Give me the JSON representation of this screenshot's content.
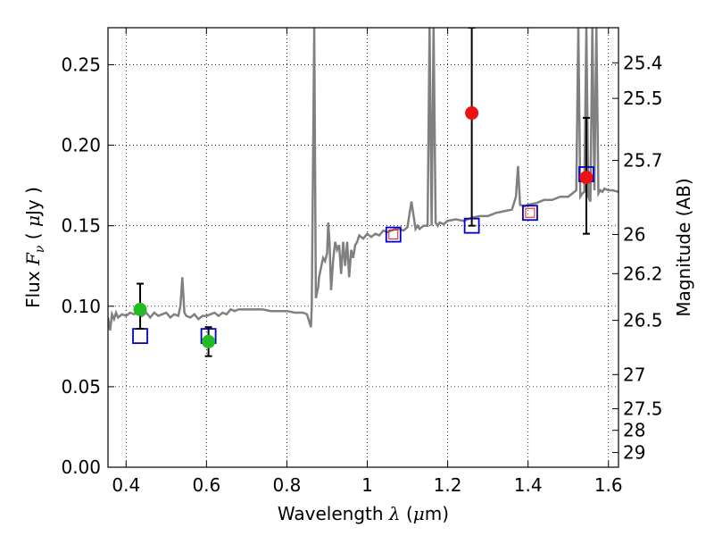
{
  "chart_data": {
    "type": "scatter",
    "xlabel_text": "Wavelength",
    "xlabel_symbol": "λ",
    "xlabel_unit_open": " (",
    "xlabel_unit_mu": "μ",
    "xlabel_unit_rest": "m)",
    "ylabel_text": "Flux",
    "ylabel_symbol": "F",
    "ylabel_sub": "ν",
    "ylabel_unit_open": "  ( ",
    "ylabel_unit_mu": "μ",
    "ylabel_unit_rest": "Jy )",
    "y2label": "Magnitude (AB)",
    "xlim": [
      0.355,
      1.625
    ],
    "ylim": [
      0.0,
      0.273
    ],
    "grid": true,
    "x_ticks": [
      0.4,
      0.6,
      0.8,
      1.0,
      1.2,
      1.4,
      1.6
    ],
    "x_tick_labels": [
      "0.4",
      "0.6",
      "0.8",
      "1",
      "1.2",
      "1.4",
      "1.6"
    ],
    "y_ticks": [
      0.0,
      0.05,
      0.1,
      0.15,
      0.2,
      0.25
    ],
    "y_tick_labels": [
      "0.00",
      "0.05",
      "0.10",
      "0.15",
      "0.20",
      "0.25"
    ],
    "mag_ticks": [
      25.4,
      25.5,
      25.7,
      26,
      26.2,
      26.5,
      27,
      27.5,
      28,
      29
    ],
    "mag_tick_labels": [
      "25.4",
      "25.5",
      "25.7",
      "26",
      "26.2",
      "26.5",
      "27",
      "27.5",
      "28",
      "29"
    ],
    "model_spectrum": {
      "color": "#808080",
      "x": [
        0.355,
        0.36,
        0.365,
        0.37,
        0.375,
        0.38,
        0.39,
        0.4,
        0.41,
        0.42,
        0.43,
        0.44,
        0.45,
        0.46,
        0.47,
        0.48,
        0.49,
        0.5,
        0.51,
        0.52,
        0.53,
        0.535,
        0.54,
        0.545,
        0.55,
        0.56,
        0.57,
        0.58,
        0.59,
        0.6,
        0.61,
        0.62,
        0.63,
        0.64,
        0.65,
        0.66,
        0.67,
        0.68,
        0.7,
        0.72,
        0.74,
        0.76,
        0.78,
        0.8,
        0.82,
        0.84,
        0.85,
        0.86,
        0.862,
        0.868,
        0.872,
        0.878,
        0.88,
        0.885,
        0.89,
        0.895,
        0.9,
        0.903,
        0.906,
        0.91,
        0.915,
        0.92,
        0.925,
        0.93,
        0.935,
        0.94,
        0.945,
        0.95,
        0.955,
        0.96,
        0.965,
        0.97,
        0.975,
        0.98,
        0.99,
        1.0,
        1.01,
        1.02,
        1.03,
        1.04,
        1.05,
        1.06,
        1.07,
        1.08,
        1.09,
        1.1,
        1.11,
        1.12,
        1.125,
        1.13,
        1.135,
        1.14,
        1.15,
        1.155,
        1.16,
        1.165,
        1.17,
        1.175,
        1.18,
        1.19,
        1.2,
        1.22,
        1.24,
        1.26,
        1.28,
        1.3,
        1.32,
        1.34,
        1.36,
        1.37,
        1.375,
        1.38,
        1.39,
        1.4,
        1.42,
        1.44,
        1.46,
        1.48,
        1.5,
        1.51,
        1.52,
        1.525,
        1.53,
        1.535,
        1.54,
        1.545,
        1.55,
        1.555,
        1.56,
        1.565,
        1.57,
        1.575,
        1.58,
        1.585,
        1.59,
        1.6,
        1.61,
        1.625
      ],
      "y": [
        0.093,
        0.085,
        0.095,
        0.092,
        0.096,
        0.093,
        0.095,
        0.094,
        0.096,
        0.095,
        0.098,
        0.094,
        0.096,
        0.093,
        0.096,
        0.094,
        0.095,
        0.096,
        0.093,
        0.095,
        0.094,
        0.1,
        0.118,
        0.096,
        0.094,
        0.093,
        0.095,
        0.092,
        0.094,
        0.094,
        0.095,
        0.096,
        0.094,
        0.096,
        0.095,
        0.098,
        0.097,
        0.098,
        0.098,
        0.098,
        0.098,
        0.097,
        0.097,
        0.097,
        0.096,
        0.096,
        0.095,
        0.087,
        0.1,
        0.273,
        0.105,
        0.112,
        0.118,
        0.124,
        0.13,
        0.128,
        0.133,
        0.152,
        0.14,
        0.11,
        0.128,
        0.14,
        0.135,
        0.138,
        0.12,
        0.14,
        0.125,
        0.14,
        0.118,
        0.135,
        0.13,
        0.138,
        0.14,
        0.144,
        0.142,
        0.145,
        0.143,
        0.145,
        0.144,
        0.147,
        0.146,
        0.147,
        0.148,
        0.148,
        0.147,
        0.149,
        0.165,
        0.148,
        0.15,
        0.148,
        0.149,
        0.15,
        0.15,
        0.273,
        0.15,
        0.273,
        0.152,
        0.15,
        0.152,
        0.151,
        0.153,
        0.154,
        0.153,
        0.155,
        0.156,
        0.156,
        0.158,
        0.159,
        0.16,
        0.168,
        0.187,
        0.163,
        0.162,
        0.163,
        0.164,
        0.166,
        0.166,
        0.168,
        0.168,
        0.17,
        0.172,
        0.273,
        0.168,
        0.17,
        0.171,
        0.273,
        0.168,
        0.165,
        0.273,
        0.172,
        0.273,
        0.17,
        0.172,
        0.171,
        0.173,
        0.172,
        0.172,
        0.171
      ]
    },
    "model_points": {
      "color": "#0000cc",
      "marker": "open-square",
      "x": [
        0.435,
        0.605,
        1.065,
        1.26,
        1.405,
        1.545
      ],
      "y": [
        0.0815,
        0.0815,
        0.1445,
        0.15,
        0.158,
        0.182
      ]
    },
    "observed_points": [
      {
        "x": 0.435,
        "y": 0.098,
        "err_low": 0.086,
        "err_high": 0.114,
        "color": "#22bb22"
      },
      {
        "x": 0.605,
        "y": 0.078,
        "err_low": 0.069,
        "err_high": 0.087,
        "color": "#22bb22"
      },
      {
        "x": 1.065,
        "y": 0.1445,
        "err_low": 0.1445,
        "err_high": 0.1445,
        "color": "#ee1111"
      },
      {
        "x": 1.26,
        "y": 0.22,
        "err_low": 0.15,
        "err_high": 0.273,
        "color": "#ee1111"
      },
      {
        "x": 1.405,
        "y": 0.158,
        "err_low": 0.158,
        "err_high": 0.158,
        "color": "#ee1111"
      },
      {
        "x": 1.545,
        "y": 0.18,
        "err_low": 0.145,
        "err_high": 0.217,
        "color": "#ee1111"
      }
    ]
  }
}
